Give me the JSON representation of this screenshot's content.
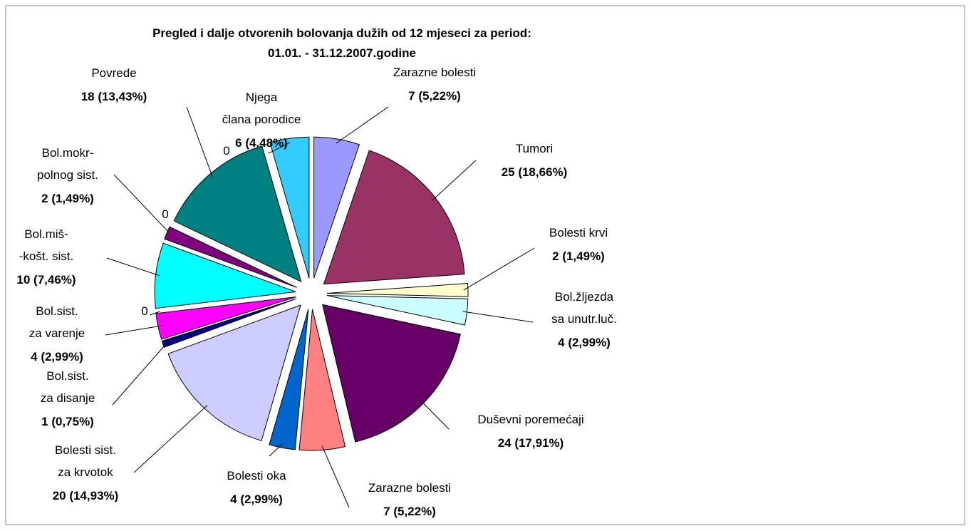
{
  "chart_data": {
    "type": "pie",
    "title": "Pregled i dalje otvorenih bolovanja dužih od 12 mjeseci za period:",
    "subtitle": "01.01. - 31.12.2007.godine",
    "categories": [
      [
        "Zarazne bolesti"
      ],
      [
        "Tumori"
      ],
      [
        "Bolesti krvi"
      ],
      [
        "Bol.žljezda",
        "sa unutr.luč."
      ],
      [
        "Duševni poremećaji"
      ],
      [
        "Zarazne bolesti"
      ],
      [
        "Bolesti oka"
      ],
      [
        "Bolesti sist.",
        "za krvotok"
      ],
      [
        "Bol.sist.",
        "za disanje"
      ],
      [
        "Bol.sist.",
        "za varenje"
      ],
      null,
      [
        "Bol.miš-",
        "-košt. sist."
      ],
      null,
      [
        "Bol.mokr-",
        "polnog sist."
      ],
      [
        "Povrede"
      ],
      null,
      [
        "Njega",
        "člana porodice"
      ]
    ],
    "values": [
      7,
      25,
      2,
      4,
      24,
      7,
      4,
      20,
      1,
      4,
      0,
      10,
      0,
      2,
      18,
      0,
      6
    ],
    "value_labels": [
      "7 (5,22%)",
      "25 (18,66%)",
      "2 (1,49%)",
      "4 (2,99%)",
      "24 (17,91%)",
      "7 (5,22%)",
      "4 (2,99%)",
      "20 (14,93%)",
      "1 (0,75%)",
      "4 (2,99%)",
      "0",
      "10 (7,46%)",
      "0",
      "2 (1,49%)",
      "18 (13,43%)",
      "0",
      "6 (4,48%)"
    ],
    "colors": [
      "#9999ff",
      "#993366",
      "#ffffcc",
      "#ccffff",
      "#660066",
      "#ff8080",
      "#0066cc",
      "#ccccff",
      "#000080",
      "#ff00ff",
      "#ffff00",
      "#00ffff",
      "#cccccc",
      "#800080",
      "#008080",
      "#ff9900",
      "#33ccff"
    ]
  }
}
